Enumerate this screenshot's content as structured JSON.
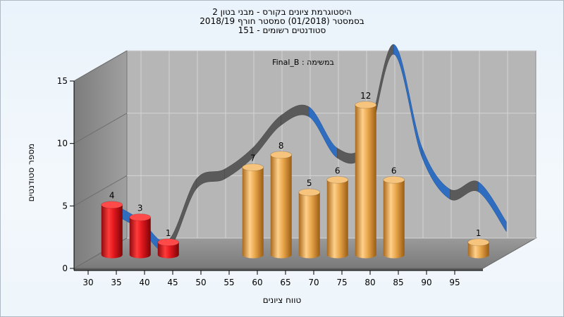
{
  "chart_data": {
    "type": "bar",
    "title_lines": [
      "היסטוגרמת ציונים בקורס - מבני בטון 2",
      "בסמסטר  (01/2018)  סמסטר חורף 2018/19",
      "סטודנטים רשומים - 151"
    ],
    "subtitle": "במשימה : Final_B",
    "xlabel": "טווח ציונים",
    "ylabel": "מספר סטודנטים",
    "ylim": [
      0,
      15
    ],
    "y_ticks": [
      "0",
      "5",
      "10",
      "15"
    ],
    "x_ticks": [
      "30",
      "35",
      "40",
      "45",
      "50",
      "55",
      "60",
      "65",
      "70",
      "75",
      "80",
      "85",
      "90",
      "95"
    ],
    "bars": [
      {
        "x": 30,
        "value": 4,
        "label": "4",
        "group": "fail"
      },
      {
        "x": 35,
        "value": 3,
        "label": "3",
        "group": "fail"
      },
      {
        "x": 40,
        "value": 1,
        "label": "1",
        "group": "fail"
      },
      {
        "x": 55,
        "value": 7,
        "label": "7",
        "group": "pass"
      },
      {
        "x": 60,
        "value": 8,
        "label": "8",
        "group": "pass"
      },
      {
        "x": 65,
        "value": 5,
        "label": "5",
        "group": "pass"
      },
      {
        "x": 70,
        "value": 6,
        "label": "6",
        "group": "pass"
      },
      {
        "x": 75,
        "value": 12,
        "label": "12",
        "group": "pass"
      },
      {
        "x": 80,
        "value": 6,
        "label": "6",
        "group": "pass"
      },
      {
        "x": 95,
        "value": 1,
        "label": "1",
        "group": "pass"
      }
    ],
    "curve": [
      {
        "x": 29,
        "y": 3.9
      },
      {
        "x": 34,
        "y": 2.6
      },
      {
        "x": 39,
        "y": 0.9
      },
      {
        "x": 44,
        "y": 5.8
      },
      {
        "x": 49,
        "y": 6.6
      },
      {
        "x": 54,
        "y": 8.3
      },
      {
        "x": 59,
        "y": 10.9
      },
      {
        "x": 64,
        "y": 11.6
      },
      {
        "x": 69,
        "y": 8.3
      },
      {
        "x": 74,
        "y": 8.8
      },
      {
        "x": 79,
        "y": 16.6
      },
      {
        "x": 84,
        "y": 8.4
      },
      {
        "x": 89,
        "y": 5.0
      },
      {
        "x": 94,
        "y": 5.6
      },
      {
        "x": 99,
        "y": 2.4
      }
    ],
    "colors": {
      "fail": "#e0161c",
      "pass": "#e8a64a",
      "curve_front": "#2e6dbf",
      "curve_back": "#5a5a5a",
      "wall": "#9e9e9e",
      "floor": "#8a8a8a",
      "plot_bg": "#b6b6b6",
      "grid": "#d4d4d4"
    },
    "grid": true
  }
}
